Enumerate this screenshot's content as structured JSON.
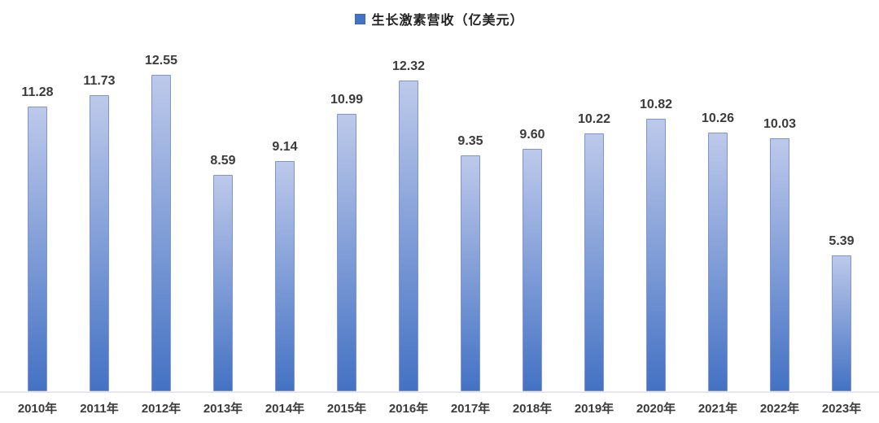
{
  "legend": {
    "label": "生长激素营收（亿美元）",
    "marker_color": "#4472C4",
    "marker_name": "series-swatch-icon"
  },
  "chart_data": {
    "type": "bar",
    "title": "",
    "series_name": "生长激素营收（亿美元）",
    "categories": [
      "2010年",
      "2011年",
      "2012年",
      "2013年",
      "2014年",
      "2015年",
      "2016年",
      "2017年",
      "2018年",
      "2019年",
      "2020年",
      "2021年",
      "2022年",
      "2023年"
    ],
    "values": [
      11.28,
      11.73,
      12.55,
      8.59,
      9.14,
      10.99,
      12.32,
      9.35,
      9.6,
      10.22,
      10.82,
      10.26,
      10.03,
      5.39
    ],
    "value_labels": [
      "11.28",
      "11.73",
      "12.55",
      "8.59",
      "9.14",
      "10.99",
      "12.32",
      "9.35",
      "9.60",
      "10.22",
      "10.82",
      "10.26",
      "10.03",
      "5.39"
    ],
    "xlabel": "",
    "ylabel": "",
    "ylim": [
      0,
      14
    ],
    "grid": false,
    "y_axis_visible": false,
    "legend_position": "top-center",
    "colors": {
      "bar_fill_top": "#BDC9EA",
      "bar_fill_bottom": "#4472C4",
      "bar_border": "#7D97CD",
      "axis_line": "#E8E8EC",
      "label_text": "#3B3B3B",
      "background": "#FFFFFF"
    }
  }
}
